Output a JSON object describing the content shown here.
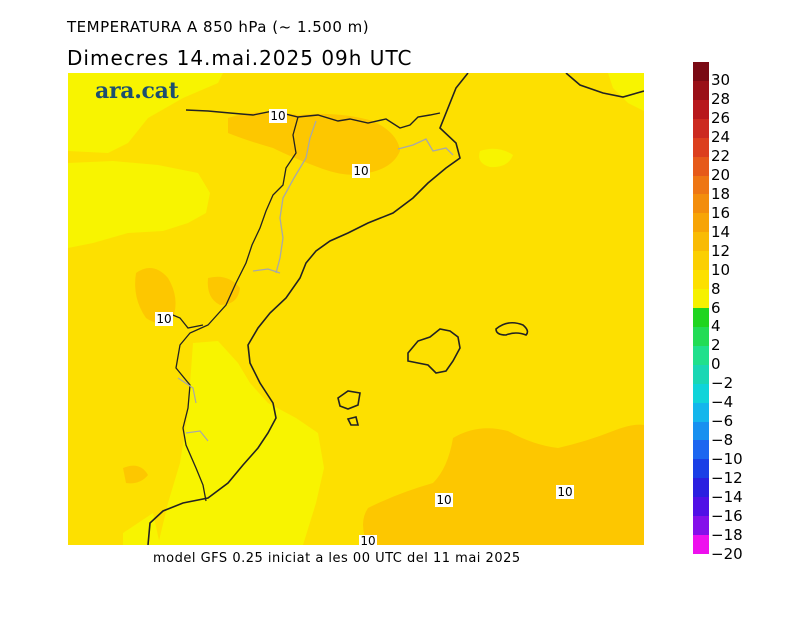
{
  "title": "TEMPERATURA A 850 hPa (~ 1.500 m)",
  "subtitle": "Dimecres   14.mai.2025 09h UTC",
  "logo": "ara.cat",
  "footer": "model GFS 0.25 iniciat a les 00 UTC del 11 mai 2025",
  "contour_labels": [
    "10",
    "10",
    "10",
    "10",
    "10",
    "10"
  ],
  "colorbar": {
    "labels": [
      "30",
      "28",
      "26",
      "24",
      "22",
      "20",
      "18",
      "16",
      "14",
      "12",
      "10",
      "8",
      "6",
      "4",
      "2",
      "0",
      "−2",
      "−4",
      "−6",
      "−8",
      "−10",
      "−12",
      "−14",
      "−16",
      "−18",
      "−20"
    ],
    "colors": [
      "#7a0a14",
      "#9a1018",
      "#b8181c",
      "#cc2a20",
      "#dc3f1e",
      "#e65a1a",
      "#ee7614",
      "#f38d0c",
      "#f7a406",
      "#f9bb04",
      "#fbcf02",
      "#fde000",
      "#f6f100",
      "#1fd51f",
      "#22dc55",
      "#20e08c",
      "#1ad7b4",
      "#10d4d9",
      "#14b6ec",
      "#1890f0",
      "#1c66f0",
      "#1a3fe6",
      "#2a1fe0",
      "#5010e6",
      "#8410ea",
      "#ee10ee"
    ]
  },
  "map_colors": {
    "warm": "#fdc700",
    "base": "#fde000",
    "cool": "#f8f400",
    "coast": "#222222",
    "border": "#a8a8a8"
  }
}
